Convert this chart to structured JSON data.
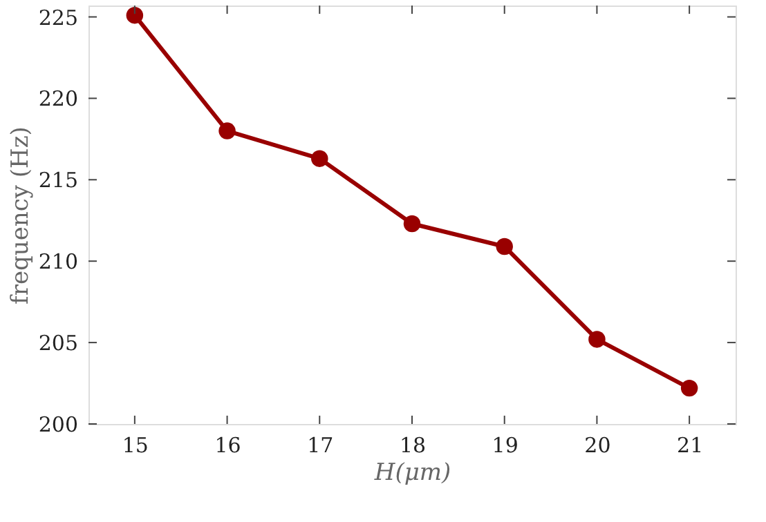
{
  "chart_data": {
    "type": "line",
    "xlabel": "H(μm)",
    "ylabel": "frequency (Hz)",
    "x": [
      15,
      16,
      17,
      18,
      19,
      20,
      21
    ],
    "series": [
      {
        "color": "#990000",
        "values": [
          225.1,
          218.0,
          216.3,
          212.3,
          210.9,
          205.2,
          202.2
        ]
      }
    ],
    "xlim": [
      14.5,
      21.5
    ],
    "xticks": [
      15,
      16,
      17,
      18,
      19,
      20,
      21
    ],
    "ylim": [
      200,
      225.7
    ],
    "yticks": [
      200,
      205,
      210,
      215,
      220,
      225
    ],
    "marker": "circle",
    "line_style": "solid",
    "grid": false
  }
}
